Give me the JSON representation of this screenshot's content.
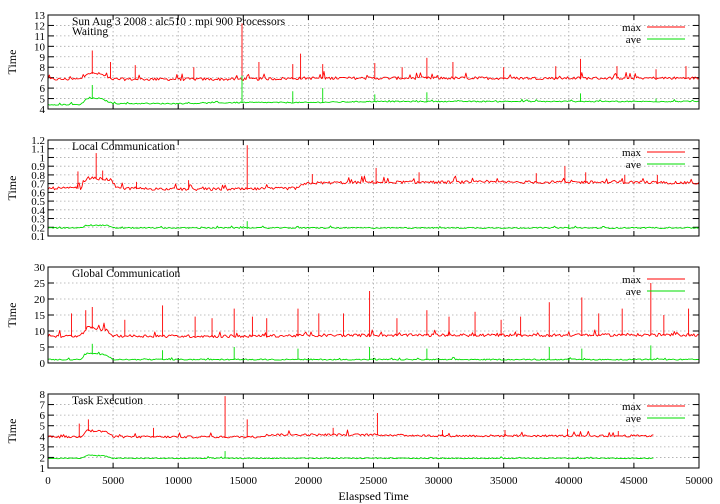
{
  "chart_data": [
    {
      "type": "line",
      "title": "Sun Aug 3 2008 : alc510 : mpi 900 Processors",
      "subtitle": "Waiting",
      "ylabel": "Time",
      "xlim": [
        0,
        50000
      ],
      "ylim": [
        4,
        13
      ],
      "yticks": [
        4,
        5,
        6,
        7,
        8,
        9,
        10,
        11,
        12,
        13
      ],
      "grid": true,
      "legend": "top-right",
      "series": [
        {
          "name": "max",
          "color": "#ff0000",
          "points": [
            [
              0,
              6.8
            ],
            [
              2500,
              6.8
            ],
            [
              3000,
              7.4
            ],
            [
              4000,
              7.3
            ],
            [
              5000,
              6.8
            ],
            [
              10000,
              6.8
            ],
            [
              15000,
              6.8
            ],
            [
              20000,
              6.9
            ],
            [
              25000,
              6.9
            ],
            [
              30000,
              6.9
            ],
            [
              35000,
              6.9
            ],
            [
              40000,
              6.9
            ],
            [
              45000,
              6.9
            ],
            [
              50000,
              6.9
            ]
          ],
          "spikes": [
            [
              3400,
              9.6
            ],
            [
              4800,
              8.5
            ],
            [
              6700,
              8.2
            ],
            [
              11200,
              8.0
            ],
            [
              14900,
              12.2
            ],
            [
              16200,
              8.5
            ],
            [
              18800,
              8.3
            ],
            [
              19400,
              9.3
            ],
            [
              21100,
              8.3
            ],
            [
              25100,
              8.4
            ],
            [
              27200,
              8.0
            ],
            [
              29100,
              8.9
            ],
            [
              31100,
              8.5
            ],
            [
              35000,
              8.0
            ],
            [
              39000,
              8.1
            ],
            [
              40900,
              8.8
            ],
            [
              43700,
              8.1
            ],
            [
              46700,
              7.8
            ],
            [
              49000,
              8.1
            ]
          ]
        },
        {
          "name": "ave",
          "color": "#00dd00",
          "points": [
            [
              0,
              4.4
            ],
            [
              2500,
              4.4
            ],
            [
              3000,
              5.0
            ],
            [
              4000,
              5.0
            ],
            [
              5000,
              4.5
            ],
            [
              10000,
              4.5
            ],
            [
              15000,
              4.6
            ],
            [
              20000,
              4.6
            ],
            [
              25000,
              4.7
            ],
            [
              30000,
              4.7
            ],
            [
              35000,
              4.7
            ],
            [
              40000,
              4.7
            ],
            [
              45000,
              4.7
            ],
            [
              50000,
              4.7
            ]
          ],
          "spikes": [
            [
              3400,
              6.3
            ],
            [
              14900,
              7.2
            ],
            [
              18800,
              5.7
            ],
            [
              21100,
              6.0
            ],
            [
              25100,
              5.4
            ],
            [
              29100,
              5.6
            ],
            [
              40900,
              5.5
            ],
            [
              46700,
              5.0
            ]
          ]
        }
      ]
    },
    {
      "type": "line",
      "title": "Local Communication",
      "ylabel": "Time",
      "xlim": [
        0,
        50000
      ],
      "ylim": [
        0.1,
        1.2
      ],
      "yticks": [
        0.1,
        0.2,
        0.3,
        0.4,
        0.5,
        0.6,
        0.7,
        0.8,
        0.9,
        1,
        1.1,
        1.2
      ],
      "grid": true,
      "legend": "top-right",
      "series": [
        {
          "name": "max",
          "color": "#ff0000",
          "points": [
            [
              0,
              0.64
            ],
            [
              2500,
              0.64
            ],
            [
              3000,
              0.76
            ],
            [
              4800,
              0.74
            ],
            [
              5300,
              0.64
            ],
            [
              10000,
              0.63
            ],
            [
              15000,
              0.63
            ],
            [
              19000,
              0.64
            ],
            [
              20000,
              0.7
            ],
            [
              25000,
              0.71
            ],
            [
              30000,
              0.71
            ],
            [
              35000,
              0.71
            ],
            [
              40000,
              0.71
            ],
            [
              45000,
              0.71
            ],
            [
              50000,
              0.7
            ]
          ],
          "spikes": [
            [
              2300,
              0.84
            ],
            [
              3700,
              1.05
            ],
            [
              4200,
              0.85
            ],
            [
              6800,
              0.72
            ],
            [
              10800,
              0.74
            ],
            [
              15300,
              1.14
            ],
            [
              20300,
              0.81
            ],
            [
              25200,
              0.88
            ],
            [
              28500,
              0.83
            ],
            [
              37500,
              0.82
            ],
            [
              39700,
              0.9
            ],
            [
              41300,
              0.83
            ],
            [
              44300,
              0.8
            ],
            [
              46800,
              0.8
            ]
          ]
        },
        {
          "name": "ave",
          "color": "#00dd00",
          "points": [
            [
              0,
              0.19
            ],
            [
              2500,
              0.19
            ],
            [
              3000,
              0.22
            ],
            [
              4500,
              0.22
            ],
            [
              5000,
              0.19
            ],
            [
              50000,
              0.19
            ]
          ],
          "spikes": [
            [
              15300,
              0.27
            ],
            [
              40000,
              0.23
            ]
          ]
        }
      ]
    },
    {
      "type": "line",
      "title": "Global Communication",
      "ylabel": "Time",
      "xlim": [
        0,
        50000
      ],
      "ylim": [
        0,
        30
      ],
      "yticks": [
        0,
        5,
        10,
        15,
        20,
        25,
        30
      ],
      "grid": true,
      "legend": "top-right",
      "series": [
        {
          "name": "max",
          "color": "#ff0000",
          "points": [
            [
              0,
              8.0
            ],
            [
              2500,
              8.3
            ],
            [
              3000,
              11
            ],
            [
              4500,
              10
            ],
            [
              5000,
              8.3
            ],
            [
              10000,
              8.2
            ],
            [
              15000,
              8.2
            ],
            [
              20000,
              8.4
            ],
            [
              25000,
              8.5
            ],
            [
              30000,
              8.5
            ],
            [
              35000,
              8.5
            ],
            [
              40000,
              8.5
            ],
            [
              45000,
              8.6
            ],
            [
              50000,
              8.6
            ]
          ],
          "spikes": [
            [
              1800,
              15.5
            ],
            [
              2900,
              16.5
            ],
            [
              3400,
              17.5
            ],
            [
              5900,
              13.5
            ],
            [
              8800,
              18.0
            ],
            [
              11300,
              14.5
            ],
            [
              12600,
              14.0
            ],
            [
              14300,
              17.0
            ],
            [
              15700,
              14.5
            ],
            [
              16800,
              14.0
            ],
            [
              19200,
              17.0
            ],
            [
              20800,
              15.5
            ],
            [
              22700,
              15.5
            ],
            [
              24700,
              22.5
            ],
            [
              26800,
              14.0
            ],
            [
              29100,
              16.5
            ],
            [
              30800,
              14.5
            ],
            [
              32800,
              16.0
            ],
            [
              34800,
              13.5
            ],
            [
              36300,
              14.5
            ],
            [
              38500,
              19.0
            ],
            [
              41000,
              20.5
            ],
            [
              42300,
              15.5
            ],
            [
              44100,
              17.0
            ],
            [
              46300,
              25.0
            ],
            [
              47300,
              15.0
            ],
            [
              49200,
              17.0
            ]
          ]
        },
        {
          "name": "ave",
          "color": "#00dd00",
          "points": [
            [
              0,
              1.0
            ],
            [
              2500,
              1.0
            ],
            [
              3000,
              3.0
            ],
            [
              4500,
              2.5
            ],
            [
              5000,
              1.0
            ],
            [
              50000,
              1.0
            ]
          ],
          "spikes": [
            [
              3400,
              6.0
            ],
            [
              8800,
              4.0
            ],
            [
              14300,
              5.0
            ],
            [
              19200,
              4.5
            ],
            [
              24700,
              5.0
            ],
            [
              29100,
              4.5
            ],
            [
              38500,
              5.0
            ],
            [
              41000,
              4.5
            ],
            [
              46300,
              5.5
            ]
          ]
        }
      ]
    },
    {
      "type": "line",
      "title": "Task Execution",
      "ylabel": "Time",
      "xlabel": "Elaspsed Time",
      "xlim": [
        0,
        50000
      ],
      "ylim": [
        1,
        8
      ],
      "yticks": [
        1,
        2,
        3,
        4,
        5,
        6,
        7,
        8
      ],
      "xticks": [
        0,
        5000,
        10000,
        15000,
        20000,
        25000,
        30000,
        35000,
        40000,
        45000,
        50000
      ],
      "grid": true,
      "legend": "top-right",
      "series": [
        {
          "name": "max",
          "color": "#ff0000",
          "points": [
            [
              0,
              3.9
            ],
            [
              2500,
              3.9
            ],
            [
              3000,
              4.5
            ],
            [
              4500,
              4.4
            ],
            [
              5000,
              3.9
            ],
            [
              10000,
              3.9
            ],
            [
              16000,
              3.9
            ],
            [
              17000,
              4.1
            ],
            [
              20000,
              4.1
            ],
            [
              25000,
              4.1
            ],
            [
              30000,
              4.0
            ],
            [
              35000,
              4.0
            ],
            [
              40000,
              4.0
            ],
            [
              45000,
              4.0
            ],
            [
              46500,
              4.0
            ]
          ],
          "spikes": [
            [
              2400,
              5.2
            ],
            [
              3100,
              5.6
            ],
            [
              8100,
              4.8
            ],
            [
              13600,
              7.8
            ],
            [
              15300,
              5.6
            ],
            [
              21900,
              4.8
            ],
            [
              25300,
              6.2
            ],
            [
              30300,
              4.6
            ],
            [
              35100,
              4.6
            ],
            [
              39900,
              4.7
            ],
            [
              43800,
              4.5
            ]
          ]
        },
        {
          "name": "ave",
          "color": "#00dd00",
          "points": [
            [
              0,
              1.9
            ],
            [
              2500,
              1.9
            ],
            [
              3000,
              2.2
            ],
            [
              4500,
              2.1
            ],
            [
              5000,
              1.9
            ],
            [
              46500,
              1.9
            ]
          ],
          "spikes": [
            [
              13600,
              2.6
            ]
          ]
        }
      ]
    }
  ]
}
